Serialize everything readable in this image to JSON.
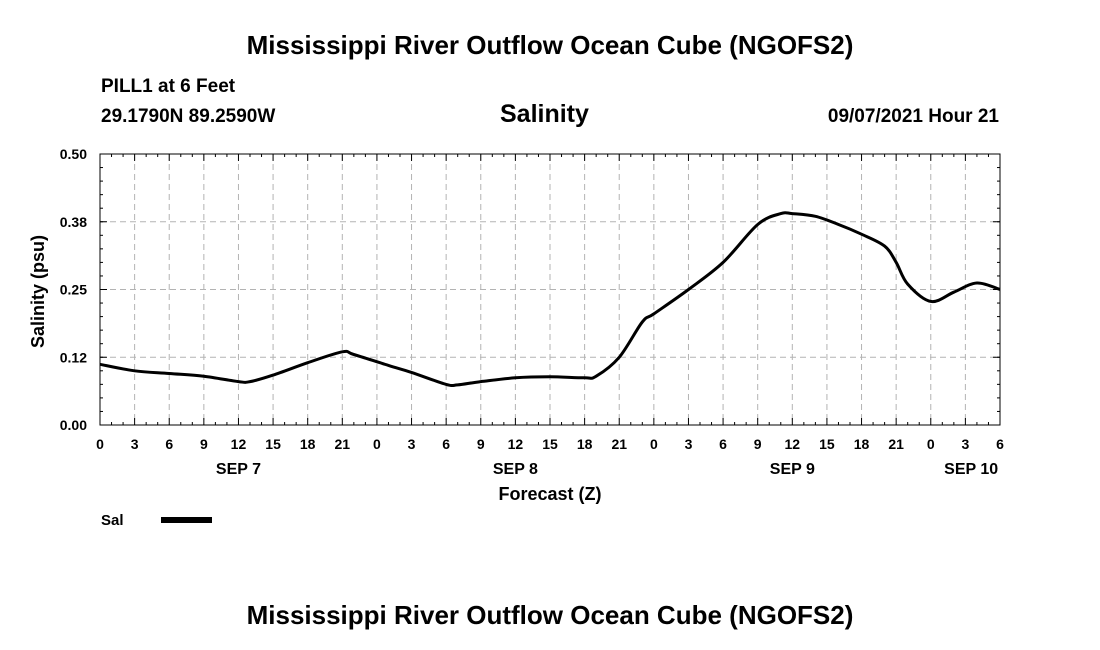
{
  "header": {
    "title": "Mississippi River Outflow Ocean Cube (NGOFS2)",
    "station": "PILL1 at 6 Feet",
    "coords": "29.1790N  89.2590W",
    "variable": "Salinity",
    "datetime": "09/07/2021 Hour 21"
  },
  "footer": {
    "title": "Mississippi River Outflow Ocean Cube (NGOFS2)"
  },
  "colors": {
    "line": "#000000",
    "grid": "#b3b3b3",
    "background": "#ffffff"
  },
  "chart_data": {
    "type": "line",
    "title": "Salinity",
    "xlabel": "Forecast (Z)",
    "ylabel": "Salinity (psu)",
    "ylim": [
      0,
      0.5
    ],
    "xlim_hours": [
      0,
      78
    ],
    "grid": true,
    "y_ticks": [
      "0.00",
      "0.12",
      "0.25",
      "0.38",
      "0.50"
    ],
    "y_tick_values": [
      0,
      0.125,
      0.25,
      0.375,
      0.5
    ],
    "x_ticks": [
      "0",
      "3",
      "6",
      "9",
      "12",
      "15",
      "18",
      "21",
      "0",
      "3",
      "6",
      "9",
      "12",
      "15",
      "18",
      "21",
      "0",
      "3",
      "6",
      "9",
      "12",
      "15",
      "18",
      "21",
      "0",
      "3",
      "6"
    ],
    "date_labels": [
      {
        "label": "SEP 7",
        "hour": 12
      },
      {
        "label": "SEP 8",
        "hour": 36
      },
      {
        "label": "SEP 9",
        "hour": 60
      },
      {
        "label": "SEP 10",
        "hour": 75.5
      }
    ],
    "legend": {
      "label": "Sal",
      "position": "bottom-left"
    },
    "series": [
      {
        "name": "Sal",
        "x": [
          0,
          3,
          6,
          9,
          12,
          13,
          15,
          18,
          21,
          22,
          25,
          27,
          30,
          31,
          33,
          36,
          39,
          42,
          43,
          45,
          47,
          48,
          51,
          54,
          57,
          59,
          60,
          62,
          64,
          66,
          68,
          69,
          70,
          72,
          74,
          76,
          78
        ],
        "values": [
          0.112,
          0.1,
          0.095,
          0.09,
          0.08,
          0.08,
          0.092,
          0.115,
          0.135,
          0.13,
          0.11,
          0.097,
          0.075,
          0.074,
          0.08,
          0.087,
          0.089,
          0.087,
          0.09,
          0.125,
          0.19,
          0.205,
          0.25,
          0.3,
          0.37,
          0.39,
          0.39,
          0.385,
          0.37,
          0.352,
          0.33,
          0.3,
          0.26,
          0.228,
          0.245,
          0.262,
          0.25
        ]
      }
    ]
  }
}
